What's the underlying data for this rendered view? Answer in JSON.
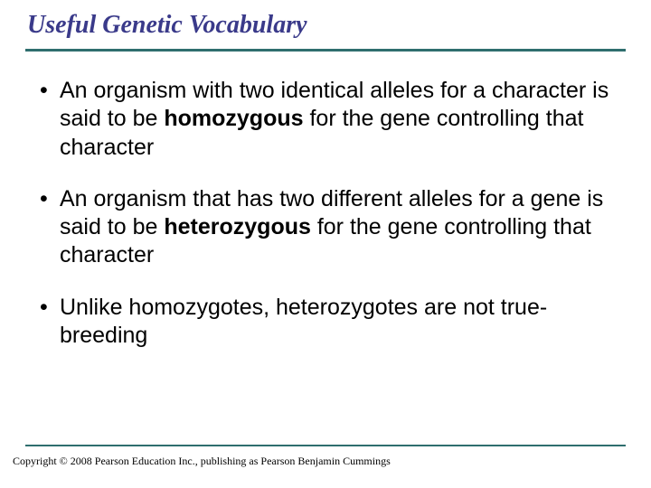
{
  "title": "Useful Genetic Vocabulary",
  "rule_color": "#2f6e6e",
  "title_color": "#3a3a8a",
  "bullets": [
    {
      "pre": "An organism with two identical alleles for a character is said to be ",
      "bold": "homozygous",
      "post": " for the gene controlling that character"
    },
    {
      "pre": "An organism that has two different alleles for a gene is said to be ",
      "bold": "heterozygous",
      "post": " for the gene controlling that character"
    },
    {
      "pre": "Unlike homozygotes, heterozygotes are not true-breeding",
      "bold": "",
      "post": ""
    }
  ],
  "copyright": "Copyright © 2008 Pearson Education Inc., publishing as Pearson Benjamin Cummings"
}
